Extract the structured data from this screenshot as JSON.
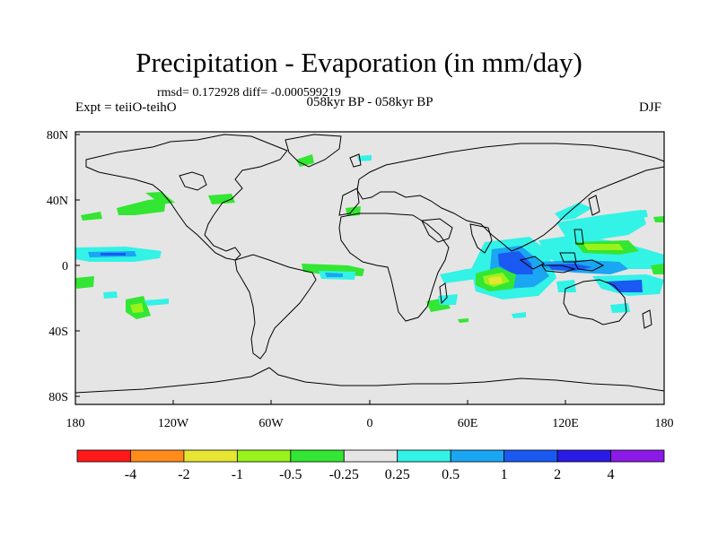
{
  "header": {
    "title": "Precipitation - Evaporation (in mm/day)",
    "stats": "rmsd= 0.172928 diff= -0.000599219",
    "subtitle": "058kyr BP - 058kyr BP",
    "expt": "Expt = teiiO-teihO",
    "season": "DJF"
  },
  "axes": {
    "y_ticks": [
      "80N",
      "40N",
      "0",
      "40S",
      "80S"
    ],
    "x_ticks": [
      "180",
      "120W",
      "60W",
      "0",
      "60E",
      "120E",
      "180"
    ]
  },
  "colorbar": {
    "colors": [
      "#ff1a1a",
      "#ff8c1a",
      "#e6e633",
      "#99f21a",
      "#33e633",
      "#e5e5e5",
      "#33f2e6",
      "#1aa6f2",
      "#1a59f2",
      "#2a1ae6",
      "#8c1ae6"
    ],
    "labels": [
      "-4",
      "-2",
      "-1",
      "-0.5",
      "-0.25",
      "0.25",
      "0.5",
      "1",
      "2",
      "4"
    ]
  },
  "map": {
    "ocean_color": "#e5e5e5",
    "coast_color": "#000000",
    "lon_range": [
      -180,
      180
    ],
    "lat_range": [
      -90,
      90
    ]
  }
}
